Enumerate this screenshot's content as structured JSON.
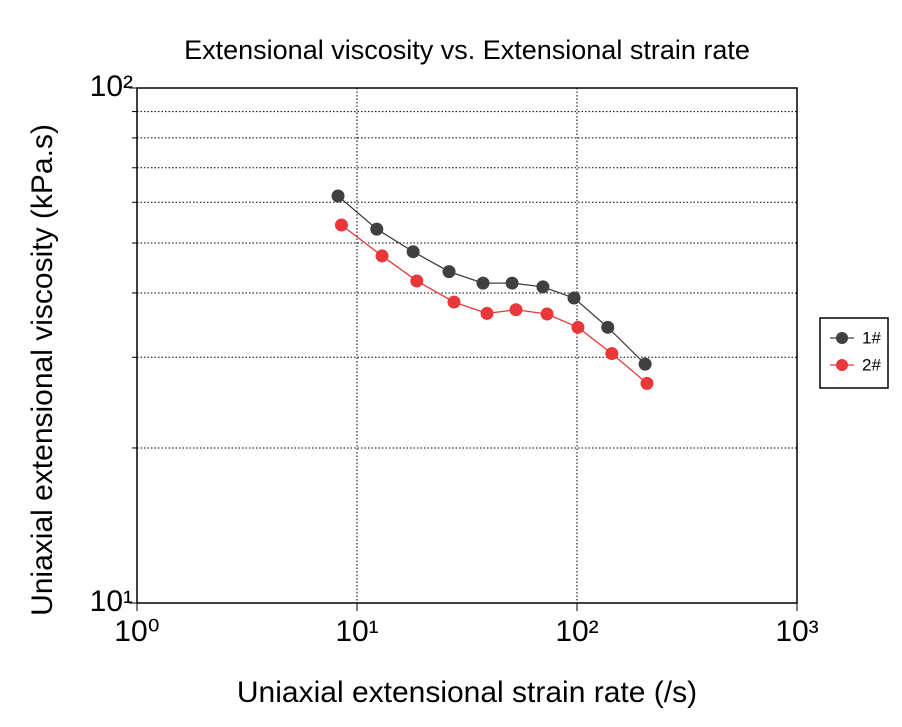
{
  "chart_data": {
    "type": "line",
    "title": "Extensional viscosity vs. Extensional strain rate",
    "xlabel": "Uniaxial extensional strain rate (/s)",
    "ylabel": "Uniaxial extensional viscosity (kPa.s)",
    "xscale": "log",
    "yscale": "log",
    "xlim": [
      1,
      1000
    ],
    "ylim": [
      10,
      100
    ],
    "xticks": [
      {
        "value": 1,
        "label": "10⁰"
      },
      {
        "value": 10,
        "label": "10¹"
      },
      {
        "value": 100,
        "label": "10²"
      },
      {
        "value": 1000,
        "label": "10³"
      }
    ],
    "yticks": [
      {
        "value": 10,
        "label": "10¹"
      },
      {
        "value": 100,
        "label": "10²"
      }
    ],
    "y_minor_ticks": [
      20,
      30,
      40,
      50,
      60,
      70,
      80,
      90
    ],
    "grid": true,
    "legend": "right",
    "series": [
      {
        "name": "1#",
        "color": "#404040",
        "x": [
          8.2,
          12.3,
          18,
          26.2,
          37.4,
          50.7,
          70,
          96.9,
          138,
          204
        ],
        "values": [
          61.7,
          53.2,
          48.1,
          44.0,
          41.8,
          41.8,
          41.1,
          39.1,
          34.3,
          29.1
        ]
      },
      {
        "name": "2#",
        "color": "#e8383a",
        "x": [
          8.5,
          13,
          18.7,
          27.6,
          39,
          52.8,
          73.1,
          101,
          144,
          208
        ],
        "values": [
          54.2,
          47.2,
          42.2,
          38.4,
          36.5,
          37.1,
          36.4,
          34.3,
          30.5,
          26.7
        ]
      }
    ]
  }
}
